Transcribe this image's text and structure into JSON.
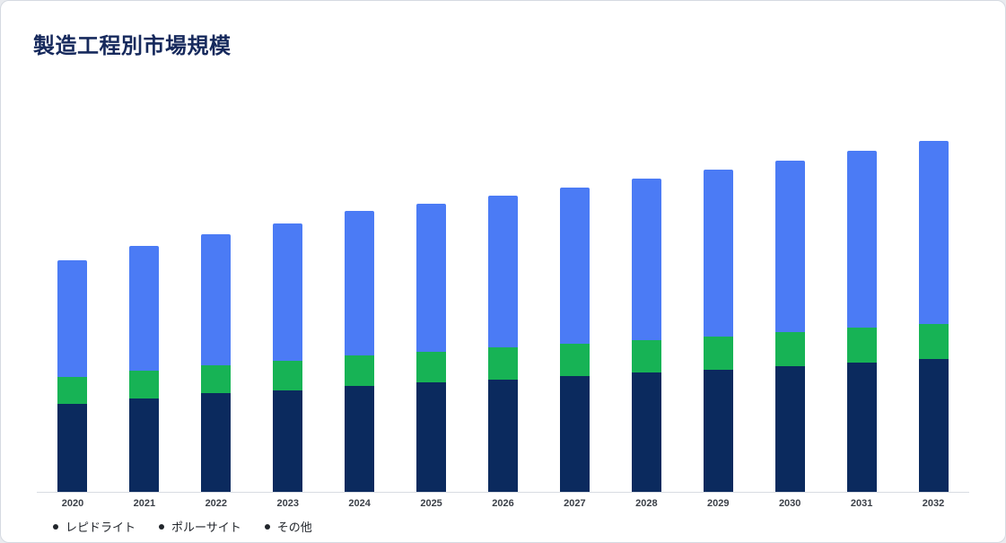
{
  "card": {
    "title": "製造工程別市場規模"
  },
  "legend": {
    "marker_color": "#21252b"
  },
  "chart_data": {
    "type": "bar",
    "stacked": true,
    "title": "製造工程別市場規模",
    "xlabel": "",
    "ylabel": "",
    "grid": false,
    "legend_position": "bottom-left",
    "ylim": [
      0,
      444
    ],
    "axis_color": "#d8dce2",
    "categories": [
      "2020",
      "2021",
      "2022",
      "2023",
      "2024",
      "2025",
      "2026",
      "2027",
      "2028",
      "2029",
      "2030",
      "2031",
      "2032"
    ],
    "series": [
      {
        "name": "レピドライト",
        "color": "#0b2a5e",
        "values": [
          98,
          104,
          110,
          113,
          118,
          122,
          125,
          129,
          133,
          136,
          140,
          144,
          148
        ]
      },
      {
        "name": "ポルーサイト",
        "color": "#17b355",
        "values": [
          30,
          31,
          31,
          33,
          34,
          34,
          36,
          36,
          36,
          37,
          38,
          39,
          39
        ]
      },
      {
        "name": "その他",
        "color": "#4b7bf5",
        "values": [
          130,
          139,
          146,
          153,
          161,
          165,
          169,
          174,
          180,
          186,
          191,
          197,
          204
        ]
      }
    ]
  }
}
